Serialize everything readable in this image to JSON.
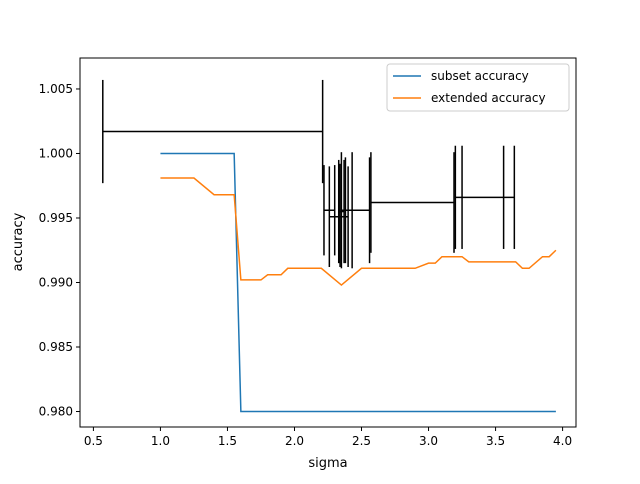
{
  "chart_data": {
    "type": "line",
    "xlabel": "sigma",
    "ylabel": "accuracy",
    "xlim": [
      0.4,
      4.1
    ],
    "ylim": [
      0.9788,
      1.0074
    ],
    "x_ticks": [
      0.5,
      1.0,
      1.5,
      2.0,
      2.5,
      3.0,
      3.5,
      4.0
    ],
    "x_tick_labels": [
      "0.5",
      "1.0",
      "1.5",
      "2.0",
      "2.5",
      "3.0",
      "3.5",
      "4.0"
    ],
    "y_ticks": [
      0.98,
      0.985,
      0.99,
      0.995,
      1.0,
      1.005
    ],
    "y_tick_labels": [
      "0.980",
      "0.985",
      "0.990",
      "0.995",
      "1.000",
      "1.005"
    ],
    "legend_position": "top-right",
    "series": [
      {
        "name": "subset accuracy",
        "color": "#1f77b4",
        "x": [
          1.0,
          1.55,
          1.6,
          3.95
        ],
        "y": [
          1.0,
          1.0,
          0.98,
          0.98
        ]
      },
      {
        "name": "extended accuracy",
        "color": "#ff7f0e",
        "x": [
          1.0,
          1.25,
          1.4,
          1.55,
          1.6,
          1.75,
          1.8,
          1.9,
          1.95,
          2.2,
          2.35,
          2.5,
          2.9,
          3.0,
          3.05,
          3.1,
          3.25,
          3.3,
          3.65,
          3.7,
          3.75,
          3.85,
          3.9,
          3.95
        ],
        "y": [
          0.9981,
          0.9981,
          0.9968,
          0.9968,
          0.9902,
          0.9902,
          0.9906,
          0.9906,
          0.9911,
          0.9911,
          0.9898,
          0.9911,
          0.9911,
          0.9915,
          0.9915,
          0.992,
          0.992,
          0.9916,
          0.9916,
          0.9911,
          0.9911,
          0.992,
          0.992,
          0.9925
        ]
      }
    ],
    "error_bars": {
      "color": "#000000",
      "points": [
        {
          "x": 1.39,
          "y": 1.0017,
          "xerr": 0.82,
          "yerr": 0.004
        },
        {
          "x": 2.26,
          "y": 0.9956,
          "xerr": 0.04,
          "yerr": 0.0035
        },
        {
          "x": 2.33,
          "y": 0.9951,
          "xerr": 0.07,
          "yerr": 0.0039
        },
        {
          "x": 2.35,
          "y": 0.9955,
          "xerr": 0.02,
          "yerr": 0.004
        },
        {
          "x": 2.39,
          "y": 0.9956,
          "xerr": 0.04,
          "yerr": 0.0045
        },
        {
          "x": 2.47,
          "y": 0.9956,
          "xerr": 0.09,
          "yerr": 0.0041
        },
        {
          "x": 2.88,
          "y": 0.9962,
          "xerr": 0.31,
          "yerr": 0.0039
        },
        {
          "x": 3.42,
          "y": 0.9966,
          "xerr": 0.22,
          "yerr": 0.004
        }
      ],
      "extra_vertical": [
        {
          "x": 2.34,
          "y": 0.9952,
          "yerr": 0.004
        },
        {
          "x": 3.25,
          "y": 0.9966,
          "yerr": 0.004
        },
        {
          "x": 3.56,
          "y": 0.9966,
          "yerr": 0.004
        }
      ]
    }
  }
}
